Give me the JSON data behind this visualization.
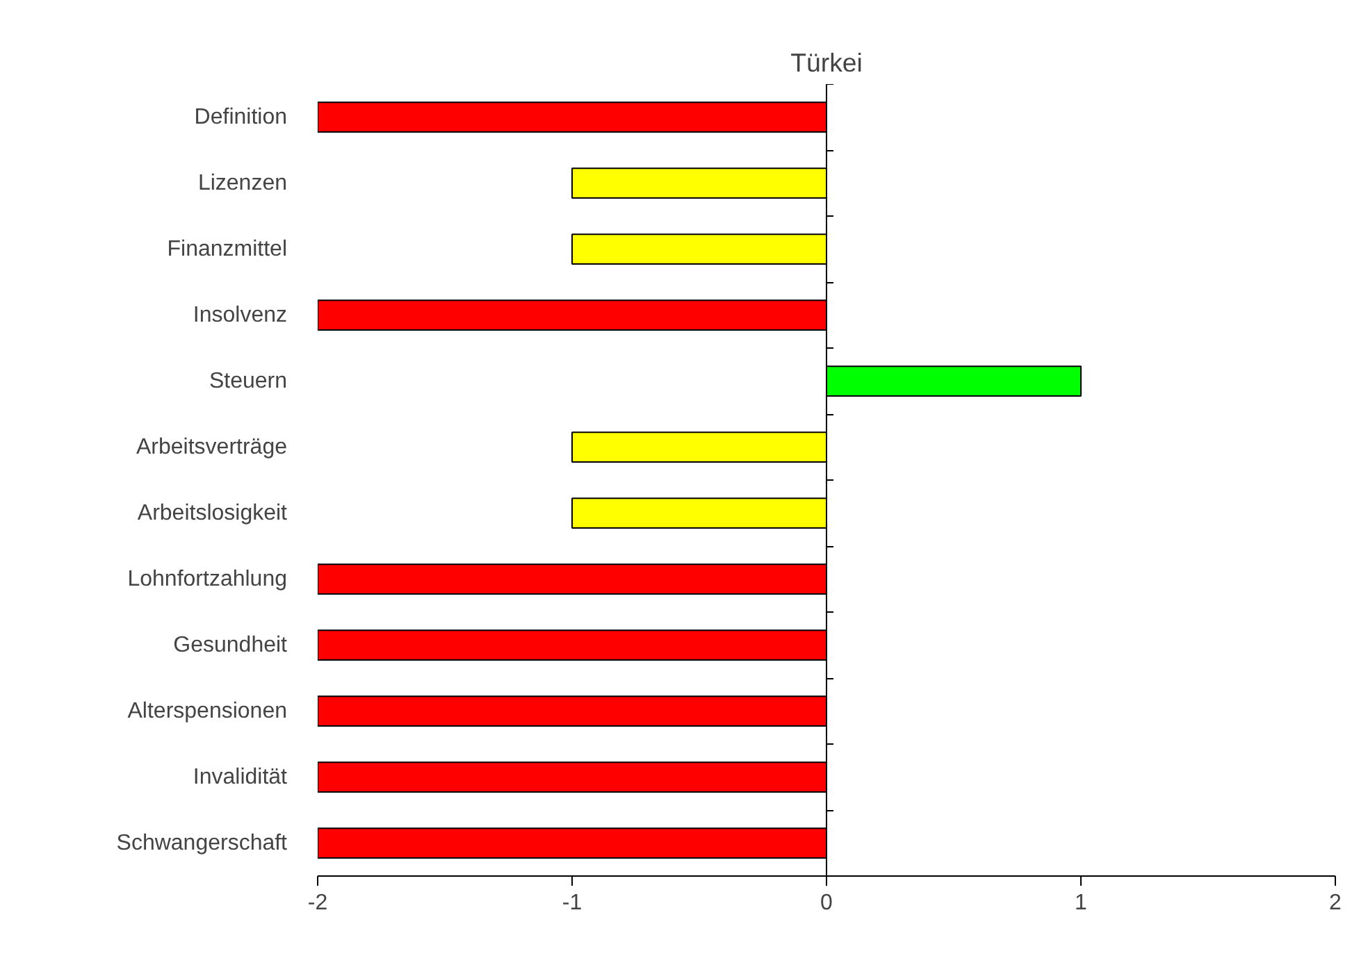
{
  "chart_data": {
    "type": "bar",
    "orientation": "horizontal",
    "title": "Türkei",
    "categories": [
      "Definition",
      "Lizenzen",
      "Finanzmittel",
      "Insolvenz",
      "Steuern",
      "Arbeitsverträge",
      "Arbeitslosigkeit",
      "Lohnfortzahlung",
      "Gesundheit",
      "Alterspensionen",
      "Invalidität",
      "Schwangerschaft"
    ],
    "values": [
      -2,
      -1,
      -1,
      -2,
      1,
      -1,
      -1,
      -2,
      -2,
      -2,
      -2,
      -2
    ],
    "colors": [
      "#ff0000",
      "#ffff00",
      "#ffff00",
      "#ff0000",
      "#00ff00",
      "#ffff00",
      "#ffff00",
      "#ff0000",
      "#ff0000",
      "#ff0000",
      "#ff0000",
      "#ff0000"
    ],
    "xlim": [
      -2,
      2
    ],
    "xticks": [
      -2,
      -1,
      0,
      1,
      2
    ]
  }
}
